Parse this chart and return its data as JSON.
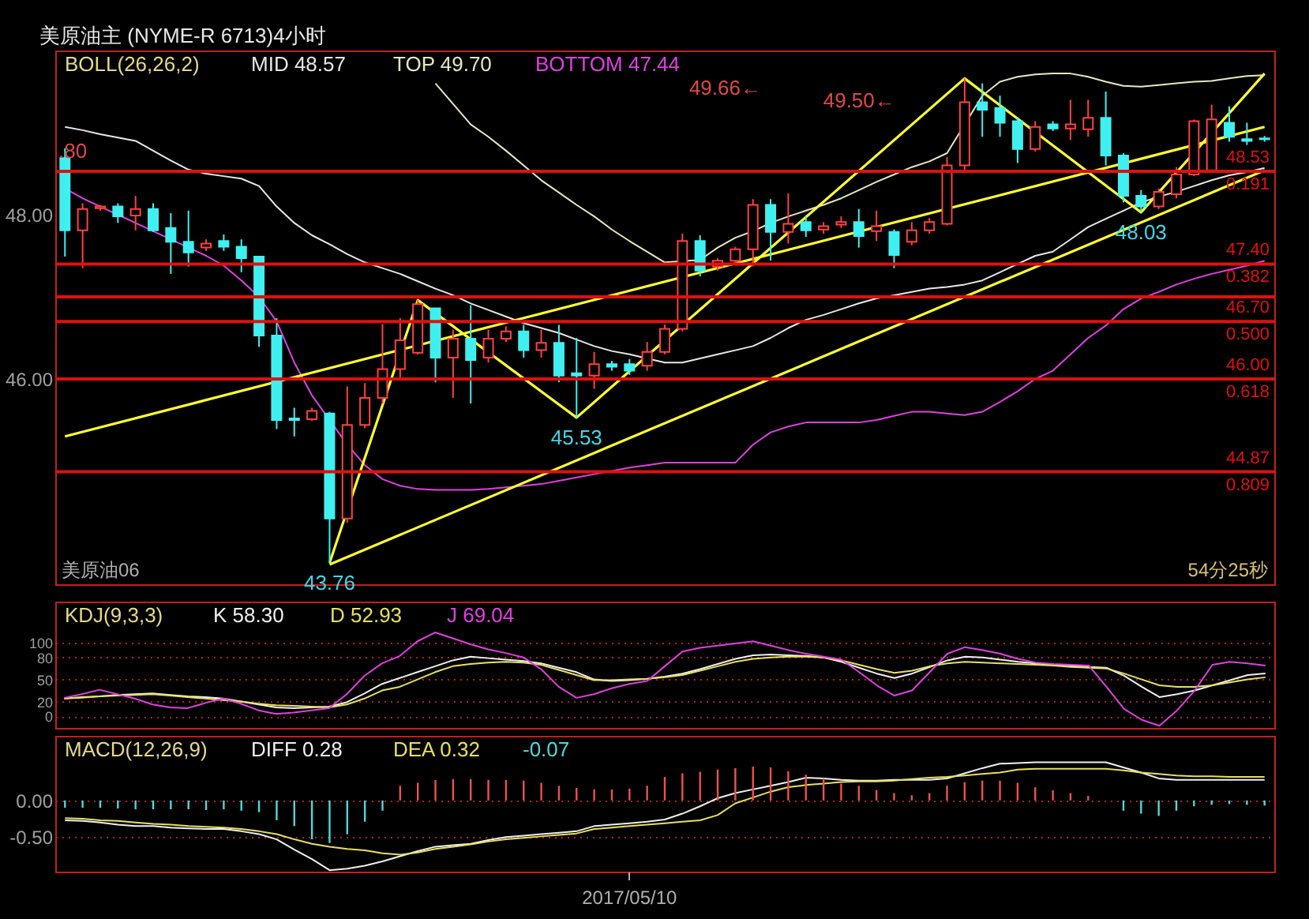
{
  "chart_data": [
    {
      "type": "candlestick",
      "title": "美原油主 (NYME-R 6713)4小时",
      "subtitle": "BOLL(26,26,2)",
      "legend": "top",
      "tick_labels": "y",
      "categories": [
        null,
        null,
        null,
        null,
        null,
        null,
        null,
        null,
        null,
        null,
        null,
        null,
        null,
        null,
        null,
        null,
        null,
        null,
        null,
        null,
        null,
        null,
        null,
        null,
        null,
        null,
        null,
        null,
        null,
        null,
        null,
        null,
        null,
        null,
        null,
        null,
        null,
        null,
        null,
        null,
        null,
        null,
        null,
        null,
        null,
        null,
        null,
        null,
        null,
        null,
        null,
        null,
        null,
        null,
        null,
        null,
        null,
        null,
        null,
        null,
        null,
        null,
        null,
        null,
        null,
        null,
        null,
        null,
        null
      ],
      "ohlc": [
        [
          48.69,
          48.81,
          47.49,
          47.81
        ],
        [
          47.81,
          48.14,
          47.35,
          48.07
        ],
        [
          48.08,
          48.12,
          48.05,
          48.1
        ],
        [
          48.1,
          48.14,
          47.9,
          47.98
        ],
        [
          47.99,
          48.23,
          47.81,
          48.07
        ],
        [
          48.07,
          48.14,
          47.79,
          47.81
        ],
        [
          47.84,
          48.02,
          47.28,
          47.67
        ],
        [
          47.67,
          48.05,
          47.37,
          47.54
        ],
        [
          47.6,
          47.7,
          47.56,
          47.65
        ],
        [
          47.68,
          47.76,
          47.56,
          47.61
        ],
        [
          47.61,
          47.7,
          47.3,
          47.47
        ],
        [
          47.49,
          47.49,
          46.39,
          46.53
        ],
        [
          46.53,
          46.74,
          45.39,
          45.5
        ],
        [
          45.52,
          45.65,
          45.3,
          45.5
        ],
        [
          45.51,
          45.65,
          45.49,
          45.61
        ],
        [
          45.58,
          45.6,
          43.76,
          44.3
        ],
        [
          44.3,
          45.91,
          44.25,
          45.44
        ],
        [
          45.44,
          45.95,
          45.4,
          45.77
        ],
        [
          45.77,
          46.67,
          45.7,
          46.12
        ],
        [
          46.12,
          46.74,
          46.0,
          46.47
        ],
        [
          46.32,
          46.96,
          46.3,
          46.91
        ],
        [
          46.86,
          46.86,
          45.96,
          46.26
        ],
        [
          46.26,
          46.6,
          45.77,
          46.49
        ],
        [
          46.49,
          46.9,
          45.7,
          46.23
        ],
        [
          46.26,
          46.6,
          46.2,
          46.49
        ],
        [
          46.49,
          46.64,
          46.45,
          46.58
        ],
        [
          46.58,
          46.66,
          46.26,
          46.35
        ],
        [
          46.35,
          46.6,
          46.26,
          46.44
        ],
        [
          46.44,
          46.66,
          45.96,
          46.04
        ],
        [
          46.07,
          46.5,
          45.53,
          46.04
        ],
        [
          46.04,
          46.33,
          45.88,
          46.18
        ],
        [
          46.18,
          46.22,
          46.1,
          46.15
        ],
        [
          46.18,
          46.24,
          46.05,
          46.1
        ],
        [
          46.16,
          46.45,
          46.1,
          46.33
        ],
        [
          46.33,
          46.66,
          46.3,
          46.61
        ],
        [
          46.61,
          47.77,
          46.58,
          47.68
        ],
        [
          47.68,
          47.75,
          47.25,
          47.32
        ],
        [
          47.37,
          47.47,
          47.32,
          47.44
        ],
        [
          47.44,
          47.61,
          47.4,
          47.58
        ],
        [
          47.58,
          48.19,
          47.37,
          48.12
        ],
        [
          48.12,
          48.19,
          47.44,
          47.79
        ],
        [
          47.79,
          48.26,
          47.65,
          47.89
        ],
        [
          47.91,
          47.98,
          47.73,
          47.81
        ],
        [
          47.82,
          47.91,
          47.77,
          47.86
        ],
        [
          47.88,
          47.98,
          47.84,
          47.91
        ],
        [
          47.91,
          48.07,
          47.6,
          47.74
        ],
        [
          47.8,
          48.05,
          47.68,
          47.86
        ],
        [
          47.79,
          47.82,
          47.35,
          47.51
        ],
        [
          47.67,
          47.91,
          47.63,
          47.81
        ],
        [
          47.81,
          47.96,
          47.77,
          47.91
        ],
        [
          47.89,
          48.7,
          47.87,
          48.6
        ],
        [
          48.6,
          49.66,
          48.54,
          49.37
        ],
        [
          49.37,
          49.6,
          48.95,
          49.28
        ],
        [
          49.3,
          49.45,
          48.95,
          49.12
        ],
        [
          49.14,
          49.19,
          48.63,
          48.8
        ],
        [
          48.8,
          49.14,
          48.77,
          49.07
        ],
        [
          49.1,
          49.14,
          49.02,
          49.05
        ],
        [
          49.05,
          49.4,
          48.91,
          49.1
        ],
        [
          49.04,
          49.4,
          48.95,
          49.18
        ],
        [
          49.18,
          49.5,
          48.6,
          48.72
        ],
        [
          48.72,
          48.75,
          48.15,
          48.23
        ],
        [
          48.23,
          48.3,
          48.03,
          48.1
        ],
        [
          48.1,
          48.32,
          48.07,
          48.28
        ],
        [
          48.25,
          48.58,
          48.2,
          48.49
        ],
        [
          48.49,
          49.16,
          48.47,
          49.14
        ],
        [
          48.54,
          49.34,
          48.54,
          49.16
        ],
        [
          49.12,
          49.32,
          48.89,
          48.95
        ],
        [
          48.92,
          49.12,
          48.85,
          48.9
        ],
        [
          48.93,
          48.96,
          48.89,
          48.92
        ]
      ],
      "colors": [
        "#40f0f0",
        "#ff4040",
        "#ff4040",
        "#40f0f0",
        "#ff4040",
        "#40f0f0",
        "#40f0f0",
        "#40f0f0",
        "#ff4040",
        "#40f0f0",
        "#40f0f0",
        "#40f0f0",
        "#40f0f0",
        "#40f0f0",
        "#ff4040",
        "#40f0f0",
        "#ff4040",
        "#ff4040",
        "#ff4040",
        "#ff4040",
        "#ff4040",
        "#40f0f0",
        "#ff4040",
        "#40f0f0",
        "#ff4040",
        "#ff4040",
        "#40f0f0",
        "#ff4040",
        "#40f0f0",
        "#40f0f0",
        "#ff4040",
        "#40f0f0",
        "#40f0f0",
        "#ff4040",
        "#ff4040",
        "#ff4040",
        "#40f0f0",
        "#ff4040",
        "#ff4040",
        "#ff4040",
        "#40f0f0",
        "#ff4040",
        "#40f0f0",
        "#ff4040",
        "#ff4040",
        "#40f0f0",
        "#ff4040",
        "#40f0f0",
        "#ff4040",
        "#ff4040",
        "#ff4040",
        "#ff4040",
        "#40f0f0",
        "#40f0f0",
        "#40f0f0",
        "#ff4040",
        "#40f0f0",
        "#ff4040",
        "#ff4040",
        "#40f0f0",
        "#40f0f0",
        "#40f0f0",
        "#ff4040",
        "#ff4040",
        "#ff4040",
        "#ff4040",
        "#40f0f0",
        "#40f0f0",
        "#40f0f0"
      ],
      "series": [
        {
          "name": "MID 48.57",
          "type": "line",
          "color": "#e8e8e8",
          "values": [
            49.07,
            49.03,
            48.98,
            48.94,
            48.9,
            48.78,
            48.66,
            48.55,
            48.5,
            48.47,
            48.44,
            48.35,
            48.1,
            47.9,
            47.75,
            47.64,
            47.52,
            47.42,
            47.35,
            47.28,
            47.19,
            47.1,
            47.02,
            46.92,
            46.84,
            46.76,
            46.68,
            46.62,
            46.56,
            46.48,
            46.4,
            46.34,
            46.3,
            46.25,
            46.2,
            46.2,
            46.25,
            46.3,
            46.35,
            46.4,
            46.5,
            46.62,
            46.72,
            46.78,
            46.85,
            46.92,
            46.98,
            47.02,
            47.06,
            47.1,
            47.12,
            47.15,
            47.2,
            47.3,
            47.4,
            47.5,
            47.55,
            47.7,
            47.85,
            47.95,
            48.05,
            48.15,
            48.22,
            48.28,
            48.35,
            48.42,
            48.48,
            48.52,
            48.57
          ]
        },
        {
          "name": "TOP 49.70",
          "type": "line",
          "color": "#e8e8c0",
          "values": [
            null,
            null,
            null,
            null,
            null,
            null,
            null,
            null,
            null,
            null,
            null,
            null,
            null,
            null,
            null,
            null,
            null,
            null,
            null,
            null,
            null,
            49.6,
            49.35,
            49.1,
            48.95,
            48.78,
            48.6,
            48.42,
            48.27,
            48.12,
            47.98,
            47.82,
            47.68,
            47.55,
            47.42,
            null,
            47.45,
            47.6,
            47.72,
            47.8,
            47.9,
            47.98,
            48.05,
            48.12,
            48.2,
            48.3,
            48.4,
            48.49,
            48.58,
            48.65,
            48.75,
            null,
            49.45,
            49.62,
            49.68,
            49.71,
            49.72,
            49.72,
            49.68,
            49.62,
            49.57,
            49.56,
            49.58,
            49.6,
            49.62,
            49.63,
            49.66,
            49.69,
            49.7
          ]
        },
        {
          "name": "BOTTOM 47.44",
          "type": "line",
          "color": "#e040e0",
          "values": [
            48.32,
            48.2,
            48.1,
            48.0,
            47.9,
            47.8,
            47.7,
            47.6,
            47.5,
            47.38,
            47.2,
            47.0,
            46.7,
            46.2,
            45.8,
            45.5,
            45.2,
            44.95,
            44.78,
            44.7,
            44.66,
            44.65,
            44.65,
            44.65,
            44.66,
            44.68,
            44.7,
            44.72,
            44.76,
            44.8,
            44.84,
            44.88,
            44.92,
            44.95,
            44.98,
            44.98,
            44.98,
            44.98,
            44.98,
            45.2,
            45.35,
            45.42,
            45.47,
            45.47,
            45.47,
            45.47,
            45.5,
            45.55,
            45.6,
            45.6,
            45.58,
            45.56,
            45.6,
            45.72,
            45.85,
            46.0,
            46.1,
            46.3,
            46.5,
            46.65,
            46.85,
            46.98,
            47.06,
            47.15,
            47.22,
            47.28,
            47.33,
            47.38,
            47.44
          ]
        },
        {
          "type": "line",
          "color": "#ffff30",
          "values": [
            null,
            null,
            null,
            null,
            null,
            null,
            null,
            null,
            null,
            null,
            null,
            null,
            null,
            null,
            null,
            43.76,
            null,
            null,
            null,
            null,
            46.96,
            null,
            null,
            null,
            null,
            null,
            null,
            null,
            null,
            45.53,
            null,
            null,
            null,
            null,
            null,
            null,
            null,
            null,
            null,
            null,
            null,
            null,
            null,
            null,
            null,
            null,
            null,
            null,
            null,
            null,
            null,
            49.66,
            null,
            null,
            null,
            null,
            null,
            null,
            null,
            null,
            null,
            48.03,
            null,
            null,
            null,
            null,
            null,
            null,
            49.72
          ]
        },
        {
          "type": "line",
          "color": "#ffff30",
          "values": [
            45.3,
            null,
            null,
            null,
            null,
            null,
            null,
            null,
            null,
            null,
            null,
            null,
            null,
            null,
            null,
            null,
            null,
            null,
            null,
            null,
            null,
            null,
            null,
            null,
            null,
            null,
            null,
            null,
            null,
            null,
            null,
            null,
            null,
            null,
            null,
            null,
            null,
            null,
            null,
            null,
            null,
            null,
            null,
            null,
            null,
            null,
            null,
            null,
            null,
            null,
            null,
            null,
            null,
            null,
            null,
            null,
            null,
            null,
            null,
            null,
            null,
            null,
            null,
            null,
            null,
            null,
            null,
            null,
            49.07
          ]
        },
        {
          "type": "line",
          "color": "#ffff30",
          "values": [
            null,
            null,
            null,
            null,
            null,
            null,
            null,
            null,
            null,
            null,
            null,
            null,
            null,
            null,
            null,
            43.74,
            null,
            null,
            null,
            null,
            null,
            null,
            null,
            null,
            null,
            null,
            null,
            null,
            null,
            null,
            null,
            null,
            null,
            null,
            null,
            null,
            null,
            null,
            null,
            null,
            null,
            null,
            null,
            null,
            null,
            null,
            null,
            null,
            null,
            null,
            null,
            null,
            null,
            null,
            null,
            null,
            null,
            null,
            null,
            null,
            null,
            null,
            null,
            null,
            null,
            null,
            null,
            null,
            48.54
          ]
        }
      ],
      "ylim": [
        43.5,
        50.0
      ],
      "yticks": [
        {
          "value": 46,
          "label": "46.00"
        },
        {
          "value": 48,
          "label": "48.00"
        }
      ],
      "ref_lines": [
        {
          "axis": "y",
          "value": 47.0,
          "color": "#e01010"
        },
        {
          "axis": "y",
          "value": 48.53,
          "label": "48.53 0.191",
          "color": "#e01010"
        },
        {
          "axis": "y",
          "value": 47.4,
          "label": "47.40 0.382",
          "color": "#e01010"
        },
        {
          "axis": "y",
          "value": 46.7,
          "label": "46.70 0.500",
          "color": "#e01010"
        },
        {
          "axis": "y",
          "value": 46.0,
          "label": "46.00 0.618",
          "color": "#e01010"
        },
        {
          "axis": "y",
          "value": 44.87,
          "label": "44.87 0.809",
          "color": "#e01010"
        }
      ],
      "annotations": [
        "美原油06",
        "54分25秒",
        ".80",
        {
          "text": "43.76",
          "y": 43.76
        },
        {
          "text": "45.53",
          "y": 45.53
        },
        "49.66←",
        "49.50←",
        {
          "text": "48.03",
          "y": 48.03
        }
      ]
    },
    {
      "type": "line",
      "title": "KDJ(9,3,3)",
      "legend": "top left",
      "tick_labels": "y",
      "grid": "y",
      "categories": [
        null,
        null,
        null,
        null,
        null,
        null,
        null,
        null,
        null,
        null,
        null,
        null,
        null,
        null,
        null,
        null,
        null,
        null,
        null,
        null,
        null,
        null,
        null,
        null,
        null,
        null,
        null,
        null,
        null,
        null,
        null,
        null,
        null,
        null,
        null,
        null,
        null,
        null,
        null,
        null,
        null,
        null,
        null,
        null,
        null,
        null,
        null,
        null,
        null,
        null,
        null,
        null,
        null,
        null,
        null,
        null,
        null,
        null,
        null,
        null,
        null,
        null,
        null,
        null,
        null,
        null,
        null,
        null,
        null
      ],
      "series": [
        {
          "name": "K 58.30",
          "color": "#f0f0f0",
          "values": [
            24,
            26,
            27,
            29,
            30,
            31,
            29,
            27,
            26,
            24,
            20,
            16,
            12,
            11,
            12,
            13,
            19,
            31,
            44,
            52,
            60,
            68,
            76,
            81,
            79,
            77,
            75,
            72,
            66,
            60,
            50,
            48,
            49,
            51,
            54,
            58,
            64,
            71,
            78,
            83,
            84,
            83,
            82,
            80,
            74,
            66,
            58,
            52,
            58,
            67,
            76,
            81,
            80,
            77,
            74,
            72,
            70,
            69,
            67,
            66,
            55,
            40,
            26,
            30,
            35,
            42,
            49,
            56,
            58.3
          ]
        },
        {
          "name": "D 52.93",
          "color": "#e8e060",
          "values": [
            24,
            25,
            27,
            28,
            29,
            30,
            28,
            26,
            24,
            22,
            20,
            17,
            15,
            14,
            13,
            12,
            16,
            24,
            35,
            40,
            50,
            60,
            68,
            71,
            73,
            74,
            73,
            70,
            63,
            56,
            49,
            49,
            50,
            51,
            53,
            56,
            62,
            68,
            74,
            78,
            80,
            81,
            81,
            80,
            76,
            70,
            64,
            59,
            62,
            68,
            72,
            74,
            73,
            72,
            71,
            70,
            69,
            67,
            66,
            65,
            58,
            50,
            42,
            40,
            40,
            42,
            46,
            50,
            52.93
          ]
        },
        {
          "name": "J 69.04",
          "color": "#e040e0",
          "values": [
            25,
            30,
            36,
            30,
            24,
            16,
            12,
            11,
            18,
            24,
            17,
            8,
            3,
            5,
            8,
            11,
            30,
            55,
            72,
            82,
            102,
            114,
            106,
            98,
            91,
            86,
            80,
            64,
            40,
            25,
            30,
            38,
            44,
            48,
            68,
            88,
            93,
            96,
            99,
            102,
            96,
            90,
            85,
            81,
            77,
            60,
            42,
            28,
            35,
            60,
            85,
            94,
            90,
            85,
            78,
            73,
            71,
            70,
            69,
            40,
            10,
            -5,
            -13,
            8,
            35,
            70,
            74,
            72,
            69.04
          ]
        }
      ],
      "ylim": [
        -16,
        156
      ],
      "yticks": [
        0,
        20,
        50,
        80,
        100
      ]
    },
    {
      "type": "line",
      "title": "MACD(12,26,9)",
      "legend": "top left",
      "grid": "y",
      "categories": [
        null,
        null,
        null,
        null,
        null,
        null,
        null,
        null,
        null,
        null,
        null,
        null,
        null,
        null,
        null,
        null,
        null,
        null,
        null,
        null,
        null,
        null,
        null,
        null,
        null,
        null,
        null,
        null,
        null,
        null,
        null,
        null,
        "2017/05/10",
        null,
        null,
        null,
        null,
        null,
        null,
        null,
        null,
        null,
        null,
        null,
        null,
        null,
        null,
        null,
        null,
        null,
        null,
        null,
        null,
        null,
        null,
        null,
        null,
        null,
        null,
        null,
        null,
        null,
        null,
        null,
        null,
        null,
        null,
        null,
        null
      ],
      "series": [
        {
          "name": "DIFF 0.28",
          "color": "#f0f0f0",
          "values": [
            -0.27,
            -0.28,
            -0.3,
            -0.33,
            -0.35,
            -0.35,
            -0.37,
            -0.38,
            -0.39,
            -0.39,
            -0.42,
            -0.46,
            -0.53,
            -0.67,
            -0.8,
            -0.95,
            -0.93,
            -0.89,
            -0.83,
            -0.76,
            -0.69,
            -0.63,
            -0.61,
            -0.59,
            -0.54,
            -0.5,
            -0.48,
            -0.46,
            -0.44,
            -0.42,
            -0.35,
            -0.33,
            -0.31,
            -0.29,
            -0.26,
            -0.18,
            -0.08,
            0.03,
            0.1,
            0.15,
            0.2,
            0.25,
            0.31,
            0.3,
            0.28,
            0.27,
            0.27,
            0.28,
            0.28,
            0.28,
            0.3,
            0.37,
            0.44,
            0.5,
            0.51,
            0.52,
            0.52,
            0.52,
            0.52,
            0.52,
            0.45,
            0.38,
            0.3,
            0.28,
            0.28,
            0.28,
            0.28,
            0.28,
            0.28
          ]
        },
        {
          "name": "DEA 0.32",
          "color": "#e8e060",
          "values": [
            -0.24,
            -0.25,
            -0.27,
            -0.28,
            -0.3,
            -0.32,
            -0.33,
            -0.35,
            -0.36,
            -0.37,
            -0.39,
            -0.42,
            -0.46,
            -0.53,
            -0.59,
            -0.63,
            -0.66,
            -0.68,
            -0.72,
            -0.74,
            -0.71,
            -0.66,
            -0.63,
            -0.6,
            -0.56,
            -0.53,
            -0.51,
            -0.49,
            -0.47,
            -0.45,
            -0.39,
            -0.37,
            -0.35,
            -0.33,
            -0.31,
            -0.29,
            -0.27,
            -0.2,
            -0.04,
            0.04,
            0.12,
            0.18,
            0.21,
            0.23,
            0.25,
            0.26,
            0.26,
            0.27,
            0.29,
            0.31,
            0.32,
            0.34,
            0.36,
            0.38,
            0.42,
            0.43,
            0.43,
            0.43,
            0.43,
            0.43,
            0.41,
            0.38,
            0.36,
            0.34,
            0.33,
            0.33,
            0.32,
            0.32,
            0.32
          ]
        },
        {
          "type": "bar",
          "color": "#f05050",
          "values": [
            null,
            null,
            null,
            null,
            null,
            null,
            null,
            null,
            null,
            null,
            null,
            null,
            null,
            null,
            null,
            null,
            null,
            null,
            null,
            0.2,
            0.24,
            0.28,
            0.29,
            0.29,
            0.28,
            0.28,
            0.27,
            0.24,
            0.2,
            0.17,
            0.15,
            0.15,
            0.16,
            0.2,
            0.32,
            0.37,
            0.39,
            0.42,
            0.44,
            0.46,
            0.45,
            0.4,
            0.35,
            0.3,
            0.23,
            0.2,
            0.14,
            0.1,
            0.07,
            0.1,
            0.2,
            0.25,
            0.27,
            0.27,
            0.24,
            0.18,
            0.14,
            0.1,
            0.06,
            null,
            null,
            null,
            null,
            null,
            null,
            null,
            null,
            null,
            null
          ]
        },
        {
          "name": "-0.07",
          "type": "bar",
          "color": "#50d8d8",
          "values": [
            -0.1,
            -0.1,
            -0.1,
            -0.11,
            -0.12,
            -0.12,
            -0.12,
            -0.12,
            -0.13,
            -0.12,
            -0.14,
            -0.16,
            -0.27,
            -0.35,
            -0.53,
            -0.58,
            -0.46,
            -0.29,
            -0.14,
            null,
            null,
            null,
            null,
            null,
            null,
            null,
            null,
            null,
            null,
            null,
            null,
            null,
            null,
            null,
            null,
            null,
            null,
            null,
            null,
            null,
            null,
            null,
            null,
            null,
            null,
            null,
            null,
            null,
            null,
            null,
            null,
            null,
            null,
            null,
            null,
            null,
            null,
            null,
            null,
            null,
            -0.14,
            -0.18,
            -0.21,
            -0.14,
            -0.08,
            -0.06,
            -0.05,
            -0.06,
            -0.07
          ]
        }
      ],
      "ylim": [
        -0.97,
        0.88
      ],
      "yticks": [
        {
          "value": 0,
          "label": "0.00"
        },
        {
          "value": -0.5,
          "label": "-0.50"
        }
      ]
    }
  ]
}
